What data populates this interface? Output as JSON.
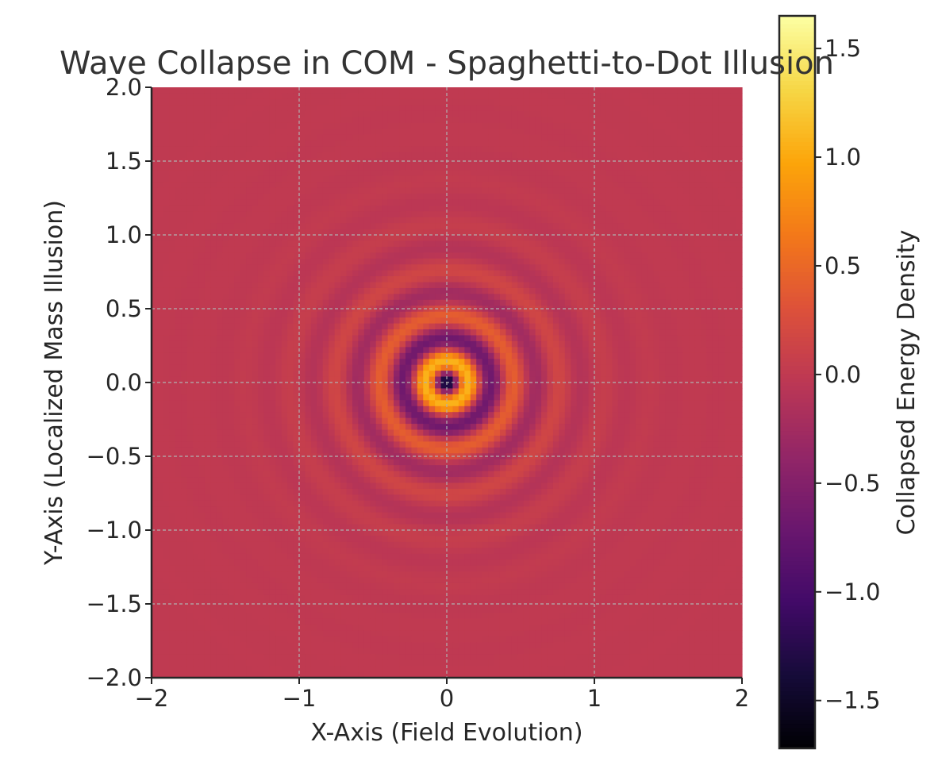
{
  "chart_data": {
    "type": "heatmap",
    "title": "Wave Collapse in COM - Spaghetti-to-Dot Illusion",
    "xlabel": "X-Axis (Field Evolution)",
    "ylabel": "Y-Axis (Localized Mass Illusion)",
    "xlim": [
      -2,
      2
    ],
    "ylim": [
      -2,
      2
    ],
    "grid": true,
    "x_ticks": [
      {
        "value": -2,
        "label": "−2"
      },
      {
        "value": -1,
        "label": "−1"
      },
      {
        "value": 0,
        "label": "0"
      },
      {
        "value": 1,
        "label": "1"
      },
      {
        "value": 2,
        "label": "2"
      }
    ],
    "y_ticks": [
      {
        "value": -2.0,
        "label": "−2.0"
      },
      {
        "value": -1.5,
        "label": "−1.5"
      },
      {
        "value": -1.0,
        "label": "−1.0"
      },
      {
        "value": -0.5,
        "label": "−0.5"
      },
      {
        "value": 0.0,
        "label": "0.0"
      },
      {
        "value": 0.5,
        "label": "0.5"
      },
      {
        "value": 1.0,
        "label": "1.0"
      },
      {
        "value": 1.5,
        "label": "1.5"
      },
      {
        "value": 2.0,
        "label": "2.0"
      }
    ],
    "grid_resolution": 100,
    "field": {
      "form": "radial damped oscillation",
      "expression": "-1.7 * cos(20.5 * r) * exp(-3.1 * r)",
      "center": [
        0,
        0
      ]
    },
    "colorbar": {
      "label": "Collapsed Energy Density",
      "colormap": "inferno",
      "range": [
        -1.72,
        1.65
      ],
      "ticks": [
        {
          "value": -1.5,
          "label": "−1.5"
        },
        {
          "value": -1.0,
          "label": "−1.0"
        },
        {
          "value": -0.5,
          "label": "−0.5"
        },
        {
          "value": 0.0,
          "label": "0.0"
        },
        {
          "value": 0.5,
          "label": "0.5"
        },
        {
          "value": 1.0,
          "label": "1.0"
        },
        {
          "value": 1.5,
          "label": "1.5"
        }
      ]
    }
  },
  "colors": {
    "axis": "#262626",
    "grid": "#b0b0b0",
    "title": "#333333"
  }
}
